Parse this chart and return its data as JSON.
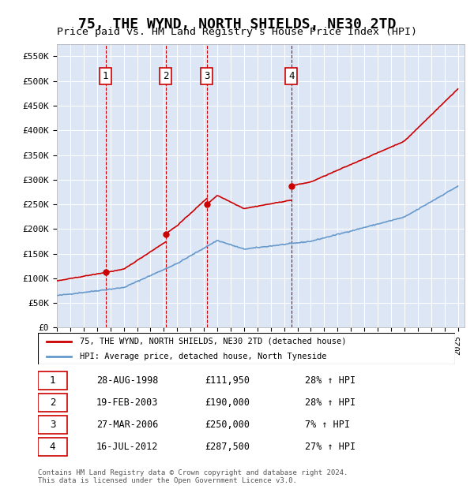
{
  "title": "75, THE WYND, NORTH SHIELDS, NE30 2TD",
  "subtitle": "Price paid vs. HM Land Registry's House Price Index (HPI)",
  "title_fontsize": 13,
  "subtitle_fontsize": 11,
  "ylabel": "",
  "xlabel": "",
  "ylim": [
    0,
    575000
  ],
  "yticks": [
    0,
    50000,
    100000,
    150000,
    200000,
    250000,
    300000,
    350000,
    400000,
    450000,
    500000,
    550000
  ],
  "ytick_labels": [
    "£0",
    "£50K",
    "£100K",
    "£150K",
    "£200K",
    "£250K",
    "£300K",
    "£350K",
    "£400K",
    "£450K",
    "£500K",
    "£550K"
  ],
  "xlim_start": 1995.0,
  "xlim_end": 2025.5,
  "xticks": [
    1995,
    1996,
    1997,
    1998,
    1999,
    2000,
    2001,
    2002,
    2003,
    2004,
    2005,
    2006,
    2007,
    2008,
    2009,
    2010,
    2011,
    2012,
    2013,
    2014,
    2015,
    2016,
    2017,
    2018,
    2019,
    2020,
    2021,
    2022,
    2023,
    2024,
    2025
  ],
  "background_color": "#dce6f5",
  "plot_bg_color": "#dce6f5",
  "grid_color": "#ffffff",
  "red_line_color": "#cc0000",
  "blue_line_color": "#6699cc",
  "transaction_color": "#cc0000",
  "transactions": [
    {
      "num": 1,
      "year": 1998.65,
      "price": 111950,
      "label": "1",
      "date": "28-AUG-1998",
      "pct": "28%",
      "dir": "↑"
    },
    {
      "num": 2,
      "year": 2003.13,
      "price": 190000,
      "label": "2",
      "date": "19-FEB-2003",
      "pct": "28%",
      "dir": "↑"
    },
    {
      "num": 3,
      "year": 2006.23,
      "price": 250000,
      "label": "3",
      "date": "27-MAR-2006",
      "pct": "7%",
      "dir": "↑"
    },
    {
      "num": 4,
      "year": 2012.54,
      "price": 287500,
      "label": "4",
      "date": "16-JUL-2012",
      "pct": "27%",
      "dir": "↑"
    }
  ],
  "legend_line1": "75, THE WYND, NORTH SHIELDS, NE30 2TD (detached house)",
  "legend_line2": "HPI: Average price, detached house, North Tyneside",
  "footer1": "Contains HM Land Registry data © Crown copyright and database right 2024.",
  "footer2": "This data is licensed under the Open Government Licence v3.0.",
  "table_rows": [
    [
      "1",
      "28-AUG-1998",
      "£111,950",
      "28% ↑ HPI"
    ],
    [
      "2",
      "19-FEB-2003",
      "£190,000",
      "28% ↑ HPI"
    ],
    [
      "3",
      "27-MAR-2006",
      "£250,000",
      "7% ↑ HPI"
    ],
    [
      "4",
      "16-JUL-2012",
      "£287,500",
      "27% ↑ HPI"
    ]
  ]
}
